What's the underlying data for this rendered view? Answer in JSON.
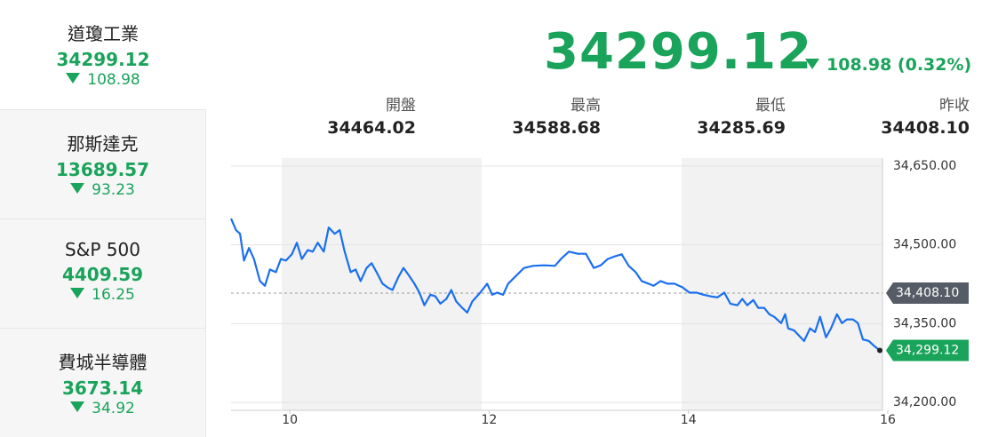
{
  "sidebar": {
    "items": [
      {
        "name": "道瓊工業",
        "value": "34299.12",
        "change": "108.98"
      },
      {
        "name": "那斯達克",
        "value": "13689.57",
        "change": "93.23"
      },
      {
        "name": "S&P 500",
        "value": "4409.59",
        "change": "16.25"
      },
      {
        "name": "費城半導體",
        "value": "3673.14",
        "change": "34.92"
      }
    ]
  },
  "header": {
    "value": "34299.12",
    "change": "108.98 (0.32%)"
  },
  "stats": [
    {
      "label": "開盤",
      "value": "34464.02"
    },
    {
      "label": "最高",
      "value": "34588.68"
    },
    {
      "label": "最低",
      "value": "34285.69"
    },
    {
      "label": "昨收",
      "value": "34408.10"
    }
  ],
  "chart_data": {
    "type": "line",
    "x": [
      9.41,
      9.46,
      9.5,
      9.54,
      9.59,
      9.64,
      9.7,
      9.75,
      9.8,
      9.86,
      9.91,
      9.96,
      10.02,
      10.07,
      10.12,
      10.18,
      10.23,
      10.28,
      10.34,
      10.39,
      10.45,
      10.5,
      10.55,
      10.61,
      10.66,
      10.71,
      10.77,
      10.82,
      10.87,
      10.93,
      10.98,
      11.03,
      11.09,
      11.14,
      11.19,
      11.25,
      11.3,
      11.35,
      11.41,
      11.46,
      11.51,
      11.57,
      11.62,
      11.67,
      11.73,
      11.78,
      11.83,
      11.91,
      11.98,
      12.03,
      12.08,
      12.14,
      12.19,
      12.26,
      12.35,
      12.44,
      12.55,
      12.66,
      12.72,
      12.8,
      12.89,
      12.97,
      13.05,
      13.12,
      13.19,
      13.26,
      13.33,
      13.4,
      13.47,
      13.53,
      13.6,
      13.65,
      13.72,
      13.79,
      13.86,
      13.94,
      14.01,
      14.08,
      14.15,
      14.22,
      14.29,
      14.36,
      14.42,
      14.49,
      14.54,
      14.59,
      14.65,
      14.7,
      14.76,
      14.81,
      14.86,
      14.93,
      14.97,
      15.0,
      15.06,
      15.11,
      15.16,
      15.22,
      15.27,
      15.32,
      15.38,
      15.43,
      15.49,
      15.54,
      15.59,
      15.65,
      15.7,
      15.75,
      15.81,
      15.86,
      15.92
    ],
    "series": [
      {
        "color": "#1a6ff0",
        "values": [
          34550,
          34528,
          34521,
          34470,
          34494,
          34473,
          34431,
          34422,
          34453,
          34448,
          34473,
          34470,
          34482,
          34504,
          34473,
          34490,
          34487,
          34504,
          34487,
          34533,
          34521,
          34528,
          34487,
          34448,
          34453,
          34431,
          34456,
          34465,
          34448,
          34426,
          34419,
          34414,
          34439,
          34456,
          34443,
          34426,
          34409,
          34385,
          34405,
          34402,
          34388,
          34397,
          34414,
          34392,
          34380,
          34371,
          34392,
          34409,
          34426,
          34405,
          34409,
          34405,
          34426,
          34439,
          34456,
          34460,
          34461,
          34460,
          34473,
          34487,
          34483,
          34483,
          34456,
          34461,
          34473,
          34478,
          34482,
          34460,
          34448,
          34431,
          34426,
          34422,
          34431,
          34426,
          34426,
          34419,
          34409,
          34409,
          34405,
          34402,
          34400,
          34409,
          34388,
          34385,
          34397,
          34385,
          34395,
          34380,
          34380,
          34368,
          34363,
          34351,
          34368,
          34341,
          34337,
          34327,
          34317,
          34341,
          34334,
          34363,
          34324,
          34341,
          34368,
          34351,
          34358,
          34358,
          34351,
          34320,
          34317,
          34308,
          34299.12
        ]
      }
    ],
    "xlim": [
      9.41,
      16
    ],
    "ylim": [
      34185,
      34665
    ],
    "xticks": [
      10,
      12,
      14,
      16
    ],
    "yticks": [
      {
        "value": 34200,
        "label": "34,200.00"
      },
      {
        "value": 34350,
        "label": "34,350.00"
      },
      {
        "value": 34500,
        "label": "34,500.00"
      },
      {
        "value": 34650,
        "label": "34,650.00"
      }
    ],
    "grid": true,
    "reference_line": {
      "value": 34408.1,
      "label": "34,408.10",
      "color": "#555c66"
    },
    "last_label": {
      "value": 34299.12,
      "label": "34,299.12",
      "color": "#1aa35a"
    }
  }
}
